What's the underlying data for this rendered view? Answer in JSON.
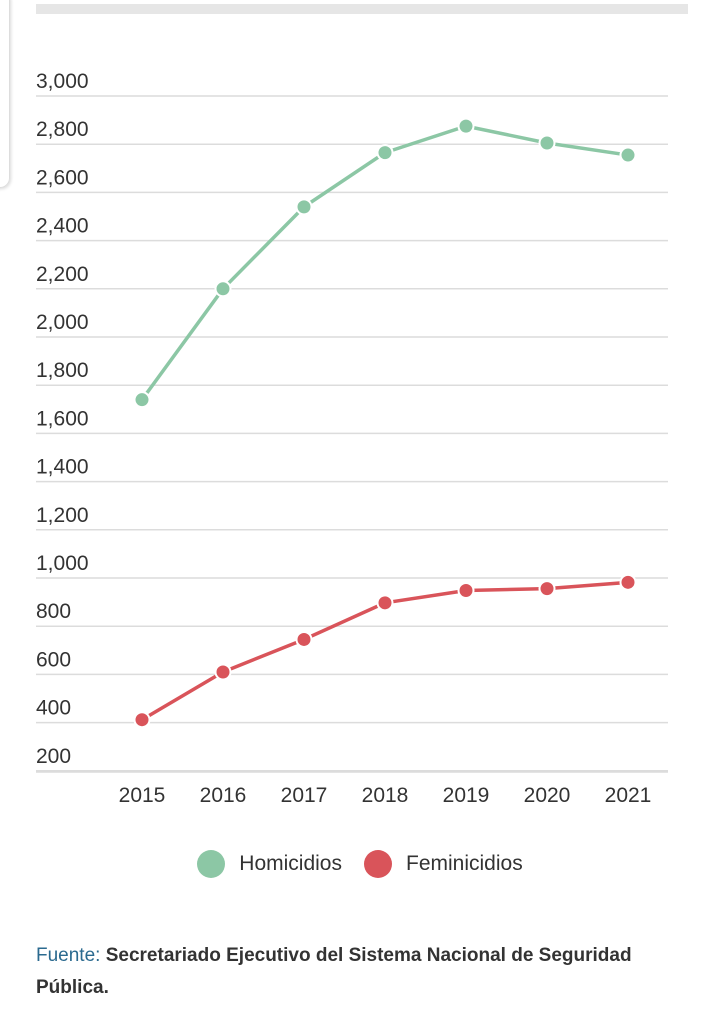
{
  "chart_data": {
    "type": "line",
    "categories": [
      "2015",
      "2016",
      "2017",
      "2018",
      "2019",
      "2020",
      "2021"
    ],
    "series": [
      {
        "name": "Homicidios",
        "color": "#8cc7a5",
        "values": [
          1740,
          2200,
          2540,
          2765,
          2875,
          2805,
          2755
        ]
      },
      {
        "name": "Feminicidios",
        "color": "#d9545a",
        "values": [
          412,
          610,
          745,
          897,
          948,
          956,
          982
        ]
      }
    ],
    "y_ticks": [
      "3,000",
      "2,800",
      "2,600",
      "2,400",
      "2,200",
      "2,000",
      "1,800",
      "1,600",
      "1,400",
      "1,200",
      "1,000",
      "800",
      "600",
      "400",
      "200"
    ],
    "ylim": [
      140,
      3000
    ],
    "grid": true,
    "legend_position": "bottom-center"
  },
  "legend": {
    "items": [
      {
        "label": "Homicidios",
        "color": "#8cc7a5"
      },
      {
        "label": "Feminicidios",
        "color": "#d9545a"
      }
    ]
  },
  "source": {
    "label": "Fuente:",
    "text": "Secretariado Ejecutivo del Sistema Nacional de Seguridad Pública."
  }
}
